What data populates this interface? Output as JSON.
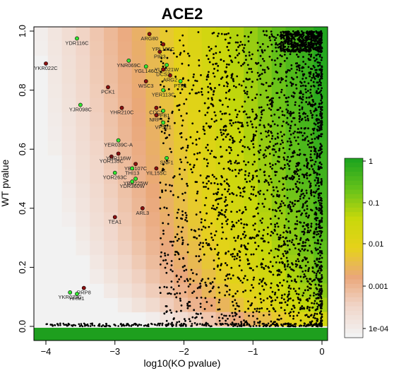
{
  "chart_data": {
    "type": "scatter",
    "title": "ACE2",
    "xlabel": "log10(KO pvalue)",
    "ylabel": "WT pvalue",
    "xlim": [
      -4.2,
      0.1
    ],
    "ylim": [
      0.0,
      1.0
    ],
    "x_ticks": [
      "−4",
      "−3",
      "−2",
      "−1",
      "0"
    ],
    "y_ticks": [
      "0.0",
      "0.2",
      "0.4",
      "0.6",
      "0.8",
      "1.0"
    ],
    "background": "heatmap of combined p-value (colorbar, log scale)",
    "colorbar": {
      "labels": [
        "1",
        "0.1",
        "0.01",
        "0.001",
        "1e-04"
      ],
      "colors": [
        "#1fa51f",
        "#67c21a",
        "#c8d80b",
        "#e6d21a",
        "#eaa77a",
        "#f1d6c9",
        "#f2f2f2"
      ]
    },
    "colors": {
      "dot": "#000000",
      "highlight_green": "#32e632",
      "highlight_red": "#8b1010"
    },
    "labeled_points": [
      {
        "gene": "YDR116C",
        "x": -3.55,
        "y": 0.975,
        "color": "green"
      },
      {
        "gene": "YKR022C",
        "x": -4.0,
        "y": 0.89,
        "color": "red"
      },
      {
        "gene": "PCK1",
        "x": -3.1,
        "y": 0.81,
        "color": "red"
      },
      {
        "gene": "YJR098C",
        "x": -3.5,
        "y": 0.75,
        "color": "green"
      },
      {
        "gene": "YHR210C",
        "x": -2.9,
        "y": 0.74,
        "color": "red"
      },
      {
        "gene": "YNR069C",
        "x": -2.8,
        "y": 0.9,
        "color": "green"
      },
      {
        "gene": "YGL146C",
        "x": -2.55,
        "y": 0.88,
        "color": "green"
      },
      {
        "gene": "WSC3",
        "x": -2.55,
        "y": 0.83,
        "color": "red"
      },
      {
        "gene": "YER113C",
        "x": -2.3,
        "y": 0.8,
        "color": "green"
      },
      {
        "gene": "ARG2",
        "x": -2.2,
        "y": 0.85,
        "color": "red"
      },
      {
        "gene": "PTK1",
        "x": -2.05,
        "y": 0.83,
        "color": "green"
      },
      {
        "gene": "YLR021W",
        "x": -2.25,
        "y": 0.885,
        "color": "green"
      },
      {
        "gene": "DCS2",
        "x": -2.3,
        "y": 0.87,
        "color": "red"
      },
      {
        "gene": "PIR3",
        "x": -2.35,
        "y": 0.93,
        "color": "red"
      },
      {
        "gene": "YPL186C",
        "x": -2.3,
        "y": 0.955,
        "color": "red"
      },
      {
        "gene": "ARG80",
        "x": -2.5,
        "y": 0.99,
        "color": "red"
      },
      {
        "gene": "CDC5",
        "x": -2.4,
        "y": 0.74,
        "color": "red"
      },
      {
        "gene": "PFB1",
        "x": -2.3,
        "y": 0.73,
        "color": "green"
      },
      {
        "gene": "NRP1",
        "x": -2.4,
        "y": 0.715,
        "color": "red"
      },
      {
        "gene": "VPS21",
        "x": -2.3,
        "y": 0.69,
        "color": "green"
      },
      {
        "gene": "YER039C-A",
        "x": -2.95,
        "y": 0.63,
        "color": "green"
      },
      {
        "gene": "YOR135C",
        "x": -3.05,
        "y": 0.575,
        "color": "red"
      },
      {
        "gene": "YGR116W",
        "x": -2.95,
        "y": 0.585,
        "color": "red"
      },
      {
        "gene": "SNF1",
        "x": -2.25,
        "y": 0.57,
        "color": "green"
      },
      {
        "gene": "YBL107C",
        "x": -2.7,
        "y": 0.55,
        "color": "red"
      },
      {
        "gene": "THI13",
        "x": -2.75,
        "y": 0.535,
        "color": "green"
      },
      {
        "gene": "YIL155C",
        "x": -2.4,
        "y": 0.535,
        "color": "red"
      },
      {
        "gene": "YOR263C",
        "x": -3.0,
        "y": 0.52,
        "color": "green"
      },
      {
        "gene": "YBR225W",
        "x": -2.7,
        "y": 0.5,
        "color": "green"
      },
      {
        "gene": "YDR360W",
        "x": -2.75,
        "y": 0.49,
        "color": "green"
      },
      {
        "gene": "ARL3",
        "x": -2.6,
        "y": 0.4,
        "color": "red"
      },
      {
        "gene": "TEA1",
        "x": -3.0,
        "y": 0.37,
        "color": "red"
      },
      {
        "gene": "RRP8",
        "x": -3.45,
        "y": 0.13,
        "color": "red"
      },
      {
        "gene": "YKR073C",
        "x": -3.65,
        "y": 0.115,
        "color": "green"
      },
      {
        "gene": "HRM1",
        "x": -3.55,
        "y": 0.11,
        "color": "green"
      }
    ]
  }
}
